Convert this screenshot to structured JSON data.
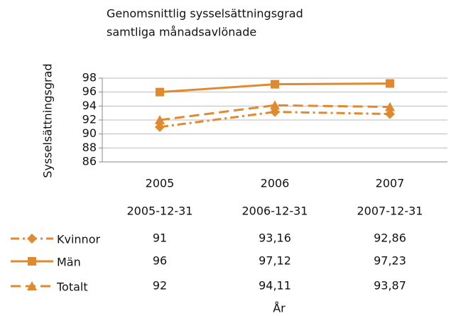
{
  "chart_data": {
    "type": "line",
    "title": [
      "Genomsnittlig sysselsättningsgrad",
      "samtliga månadsavlönade"
    ],
    "y_label": "Sysselsättningsgrad",
    "x_label": "År",
    "categories": [
      "2005",
      "2006",
      "2007"
    ],
    "table_header": [
      "2005-12-31",
      "2006-12-31",
      "2007-12-31"
    ],
    "ylim": [
      86,
      98
    ],
    "yticks": [
      86,
      88,
      90,
      92,
      94,
      96,
      98
    ],
    "grid": true,
    "series": [
      {
        "name": "Kvinnor",
        "color": "#e0892e",
        "marker": "diamond",
        "dash": "dashdot",
        "values": [
          91,
          93.16,
          92.86
        ],
        "value_labels": [
          "91",
          "93,16",
          "92,86"
        ]
      },
      {
        "name": "Män",
        "color": "#e0892e",
        "marker": "square",
        "dash": "solid",
        "values": [
          96,
          97.12,
          97.23
        ],
        "value_labels": [
          "96",
          "97,12",
          "97,23"
        ]
      },
      {
        "name": "Totalt",
        "color": "#e0892e",
        "marker": "triangle",
        "dash": "dashed",
        "values": [
          92,
          94.11,
          93.87
        ],
        "value_labels": [
          "92",
          "94,11",
          "93,87"
        ]
      }
    ]
  }
}
